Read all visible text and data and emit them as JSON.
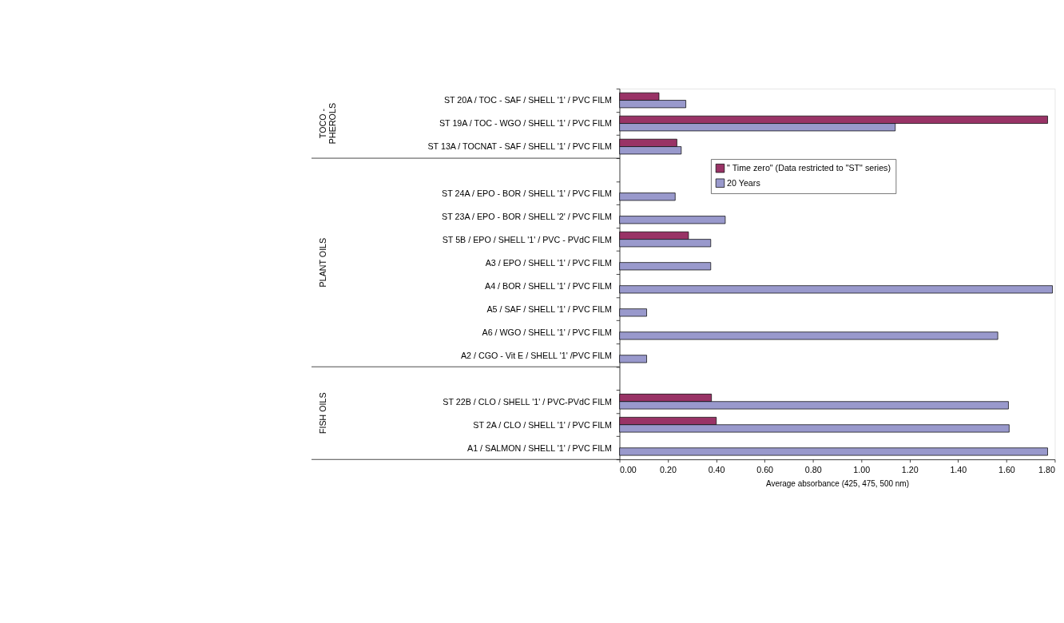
{
  "chart_data": {
    "type": "bar",
    "orientation": "horizontal",
    "categories": [
      "ST 20A / TOC - SAF / SHELL '1' / PVC FILM",
      "ST 19A / TOC - WGO / SHELL '1' / PVC FILM",
      "ST 13A / TOCNAT - SAF / SHELL '1' / PVC FILM",
      null,
      "ST 24A / EPO - BOR / SHELL '1' / PVC FILM",
      "ST 23A / EPO - BOR / SHELL '2' / PVC FILM",
      "ST 5B / EPO / SHELL '1' / PVC - PVdC FILM",
      "A3 / EPO / SHELL '1' / PVC FILM",
      "A4 / BOR / SHELL '1' / PVC FILM",
      "A5 / SAF / SHELL '1' / PVC FILM",
      "A6 / WGO / SHELL '1' / PVC FILM",
      "A2 / CGO - Vit E / SHELL '1' /PVC FILM",
      null,
      "ST 22B / CLO / SHELL '1' / PVC-PVdC FILM",
      "ST 2A / CLO / SHELL '1'  / PVC FILM",
      "A1 / SALMON / SHELL '1' / PVC FILM"
    ],
    "series": [
      {
        "name": "\" Time zero\" (Data restricted to \"ST\" series)",
        "color": "#993366",
        "values": [
          0.163,
          1.77,
          0.237,
          null,
          null,
          null,
          0.285,
          null,
          null,
          null,
          null,
          null,
          null,
          0.38,
          0.4,
          null
        ]
      },
      {
        "name": "20  Years",
        "color": "#9999cc",
        "values": [
          0.274,
          1.14,
          0.255,
          null,
          0.23,
          0.437,
          0.377,
          0.377,
          1.79,
          0.112,
          1.564,
          0.112,
          null,
          1.608,
          1.611,
          1.77
        ]
      }
    ],
    "xlabel": "Average absorbance (425, 475, 500 nm)",
    "xlim": [
      0,
      1.8
    ],
    "xticks": [
      {
        "value": 0,
        "label": "0.00"
      },
      {
        "value": 0.2,
        "label": "0.20"
      },
      {
        "value": 0.4,
        "label": "0.40"
      },
      {
        "value": 0.6,
        "label": "0.60"
      },
      {
        "value": 0.8,
        "label": "0.80"
      },
      {
        "value": 1.0,
        "label": "1.00"
      },
      {
        "value": 1.2,
        "label": "1.20"
      },
      {
        "value": 1.4,
        "label": "1.40"
      },
      {
        "value": 1.6,
        "label": "1.60"
      },
      {
        "value": 1.8,
        "label": "1.80"
      }
    ],
    "annotations": [
      "TOCO -\nPHEROLS",
      "PLANT OILS",
      "FISH OILS"
    ],
    "legend": "top",
    "grid": false
  }
}
